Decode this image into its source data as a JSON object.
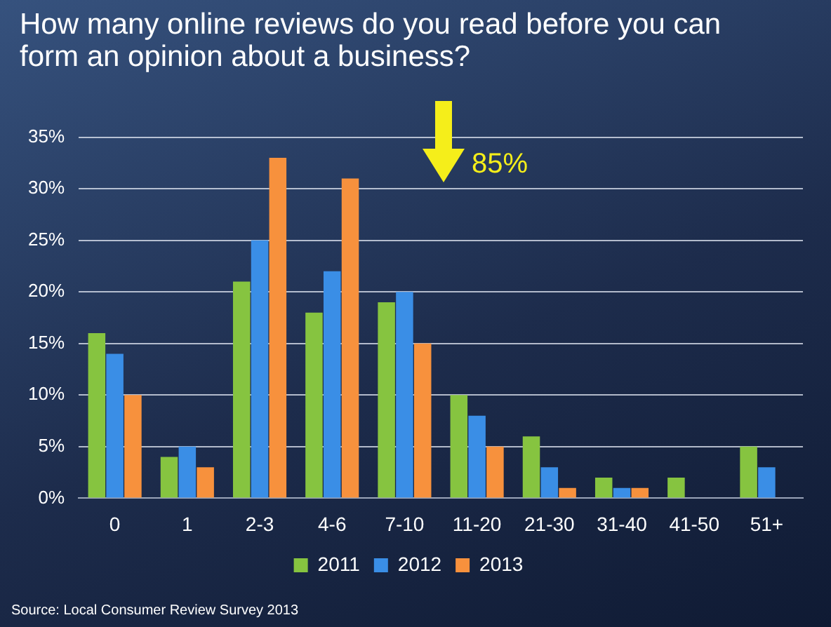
{
  "chart_data": {
    "type": "bar",
    "title": "How many online reviews do you read before you can form an opinion about a business?",
    "categories": [
      "0",
      "1",
      "2-3",
      "4-6",
      "7-10",
      "11-20",
      "21-30",
      "31-40",
      "41-50",
      "51+"
    ],
    "series": [
      {
        "name": "2011",
        "color": "#86c440",
        "values": [
          16,
          4,
          21,
          18,
          19,
          10,
          6,
          2,
          2,
          5
        ]
      },
      {
        "name": "2012",
        "color": "#3a8ee6",
        "values": [
          14,
          5,
          25,
          22,
          20,
          8,
          3,
          1,
          null,
          3
        ]
      },
      {
        "name": "2013",
        "color": "#f7913d",
        "values": [
          10,
          3,
          33,
          31,
          15,
          5,
          1,
          1,
          null,
          null
        ]
      }
    ],
    "ylim": [
      0,
      35
    ],
    "yticks": [
      {
        "value": 0,
        "label": "0%"
      },
      {
        "value": 5,
        "label": "5%"
      },
      {
        "value": 10,
        "label": "10%"
      },
      {
        "value": 15,
        "label": "15%"
      },
      {
        "value": 20,
        "label": "20%"
      },
      {
        "value": 25,
        "label": "25%"
      },
      {
        "value": 30,
        "label": "30%"
      },
      {
        "value": 35,
        "label": "35%"
      }
    ],
    "grid": "y",
    "legend": "bottom",
    "annotations": [
      "85%",
      "Source: Local Consumer Review Survey 2013"
    ]
  }
}
